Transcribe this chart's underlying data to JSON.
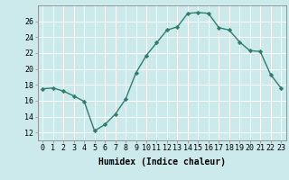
{
  "x": [
    0,
    1,
    2,
    3,
    4,
    5,
    6,
    7,
    8,
    9,
    10,
    11,
    12,
    13,
    14,
    15,
    16,
    17,
    18,
    19,
    20,
    21,
    22,
    23
  ],
  "y": [
    17.5,
    17.6,
    17.2,
    16.6,
    15.9,
    12.2,
    13.0,
    14.3,
    16.2,
    19.5,
    21.7,
    23.3,
    24.9,
    25.3,
    27.0,
    27.1,
    27.0,
    25.2,
    24.9,
    23.4,
    22.3,
    22.2,
    19.3,
    17.6
  ],
  "line_color": "#2e7d6e",
  "marker": "D",
  "markersize": 2.2,
  "linewidth": 1.0,
  "xlabel": "Humidex (Indice chaleur)",
  "xlim": [
    -0.5,
    23.5
  ],
  "ylim": [
    11,
    28
  ],
  "yticks": [
    12,
    14,
    16,
    18,
    20,
    22,
    24,
    26
  ],
  "xticks": [
    0,
    1,
    2,
    3,
    4,
    5,
    6,
    7,
    8,
    9,
    10,
    11,
    12,
    13,
    14,
    15,
    16,
    17,
    18,
    19,
    20,
    21,
    22,
    23
  ],
  "bg_color": "#cce9ec",
  "grid_color": "#ffffff",
  "axis_color": "#888888",
  "xlabel_fontsize": 7.0,
  "tick_fontsize": 6.0
}
